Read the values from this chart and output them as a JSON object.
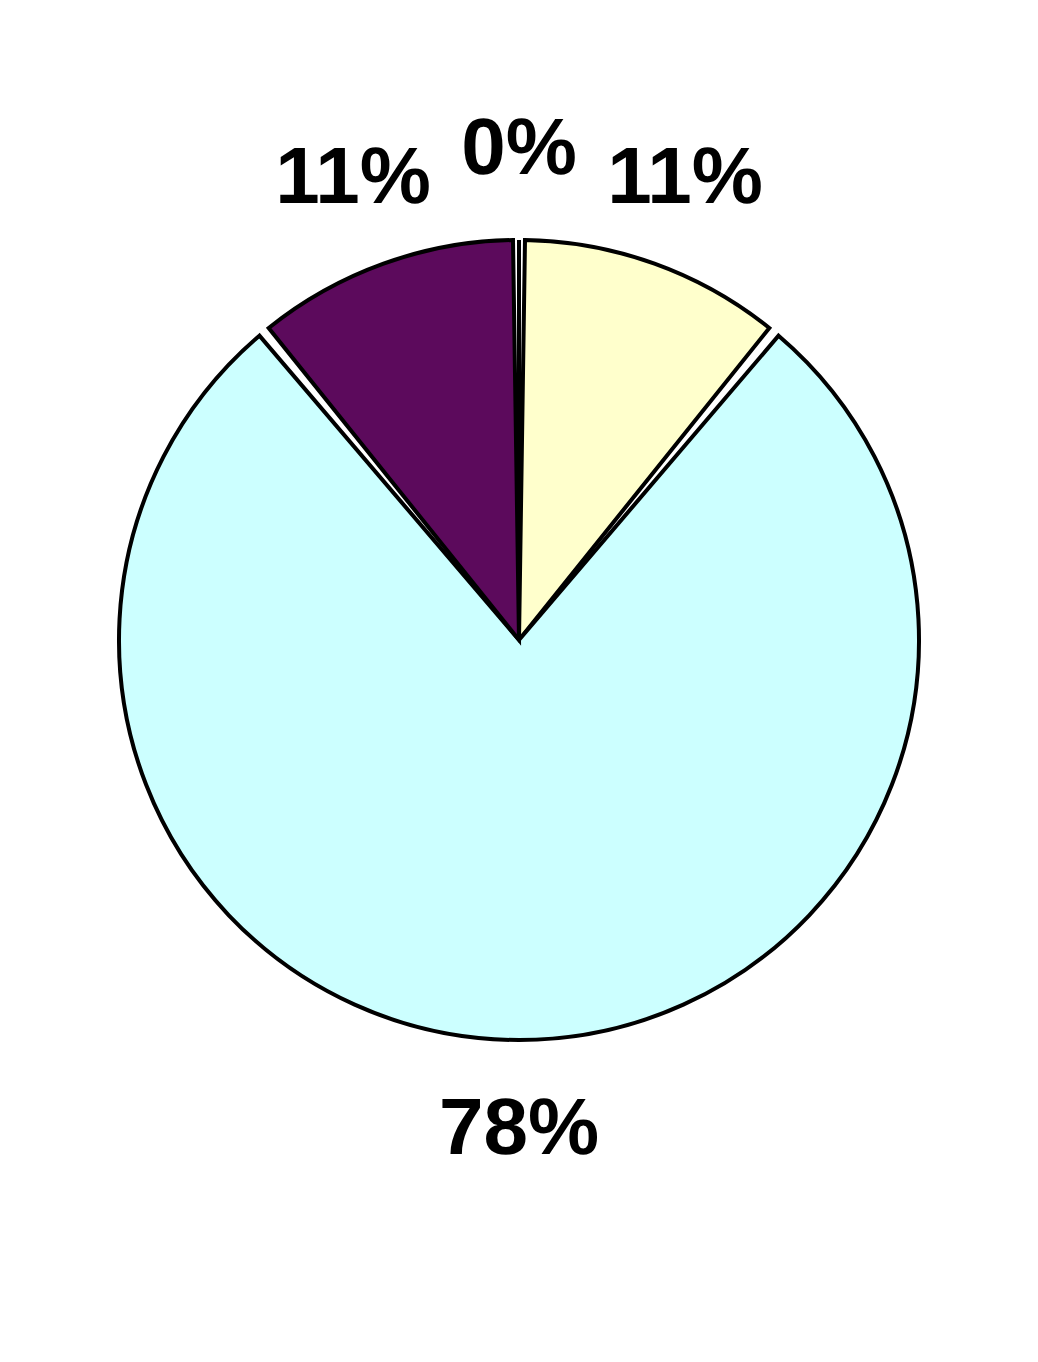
{
  "chart_data": {
    "type": "pie",
    "categories": [
      null,
      null,
      null,
      null
    ],
    "values": [
      0,
      11,
      78,
      11
    ],
    "colors": [
      "#ffffff",
      "#ffffcc",
      "#ccffff",
      "#5c0a5c"
    ],
    "value_labels": [
      "0%",
      "11%",
      "78%",
      "11%"
    ]
  }
}
